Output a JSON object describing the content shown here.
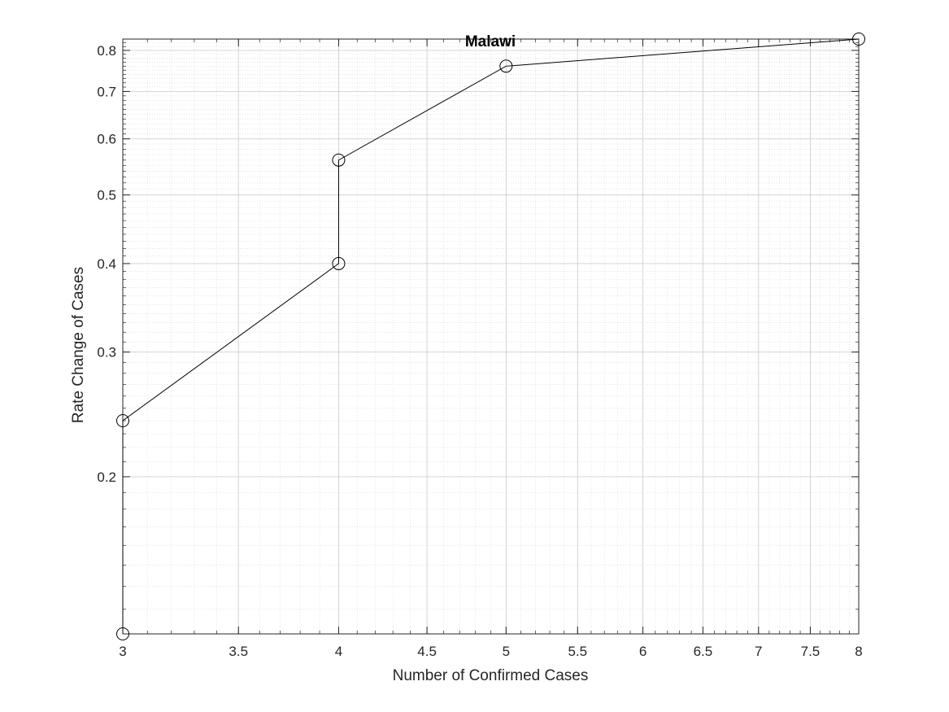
{
  "chart_data": {
    "type": "line",
    "title": "Malawi",
    "xlabel": "Number of Confirmed Cases",
    "ylabel": "Rate Change of Cases",
    "xscale": "log",
    "yscale": "log",
    "xlim": [
      3,
      8
    ],
    "ylim": [
      0.12,
      0.83
    ],
    "grid": true,
    "minor_grid": true,
    "marker": "open-circle",
    "line_color": "#000000",
    "x": [
      3,
      3,
      4,
      4,
      5,
      8
    ],
    "y": [
      0.12,
      0.24,
      0.4,
      0.56,
      0.76,
      0.83
    ],
    "x_ticks": [
      {
        "value": 3,
        "label": "3"
      },
      {
        "value": 3.5,
        "label": "3.5"
      },
      {
        "value": 4,
        "label": "4"
      },
      {
        "value": 4.5,
        "label": "4.5"
      },
      {
        "value": 5,
        "label": "5"
      },
      {
        "value": 5.5,
        "label": "5.5"
      },
      {
        "value": 6,
        "label": "6"
      },
      {
        "value": 6.5,
        "label": "6.5"
      },
      {
        "value": 7,
        "label": "7"
      },
      {
        "value": 7.5,
        "label": "7.5"
      },
      {
        "value": 8,
        "label": "8"
      }
    ],
    "y_ticks": [
      {
        "value": 0.2,
        "label": "0.2"
      },
      {
        "value": 0.3,
        "label": "0.3"
      },
      {
        "value": 0.4,
        "label": "0.4"
      },
      {
        "value": 0.5,
        "label": "0.5"
      },
      {
        "value": 0.6,
        "label": "0.6"
      },
      {
        "value": 0.7,
        "label": "0.7"
      },
      {
        "value": 0.8,
        "label": "0.8"
      }
    ]
  }
}
